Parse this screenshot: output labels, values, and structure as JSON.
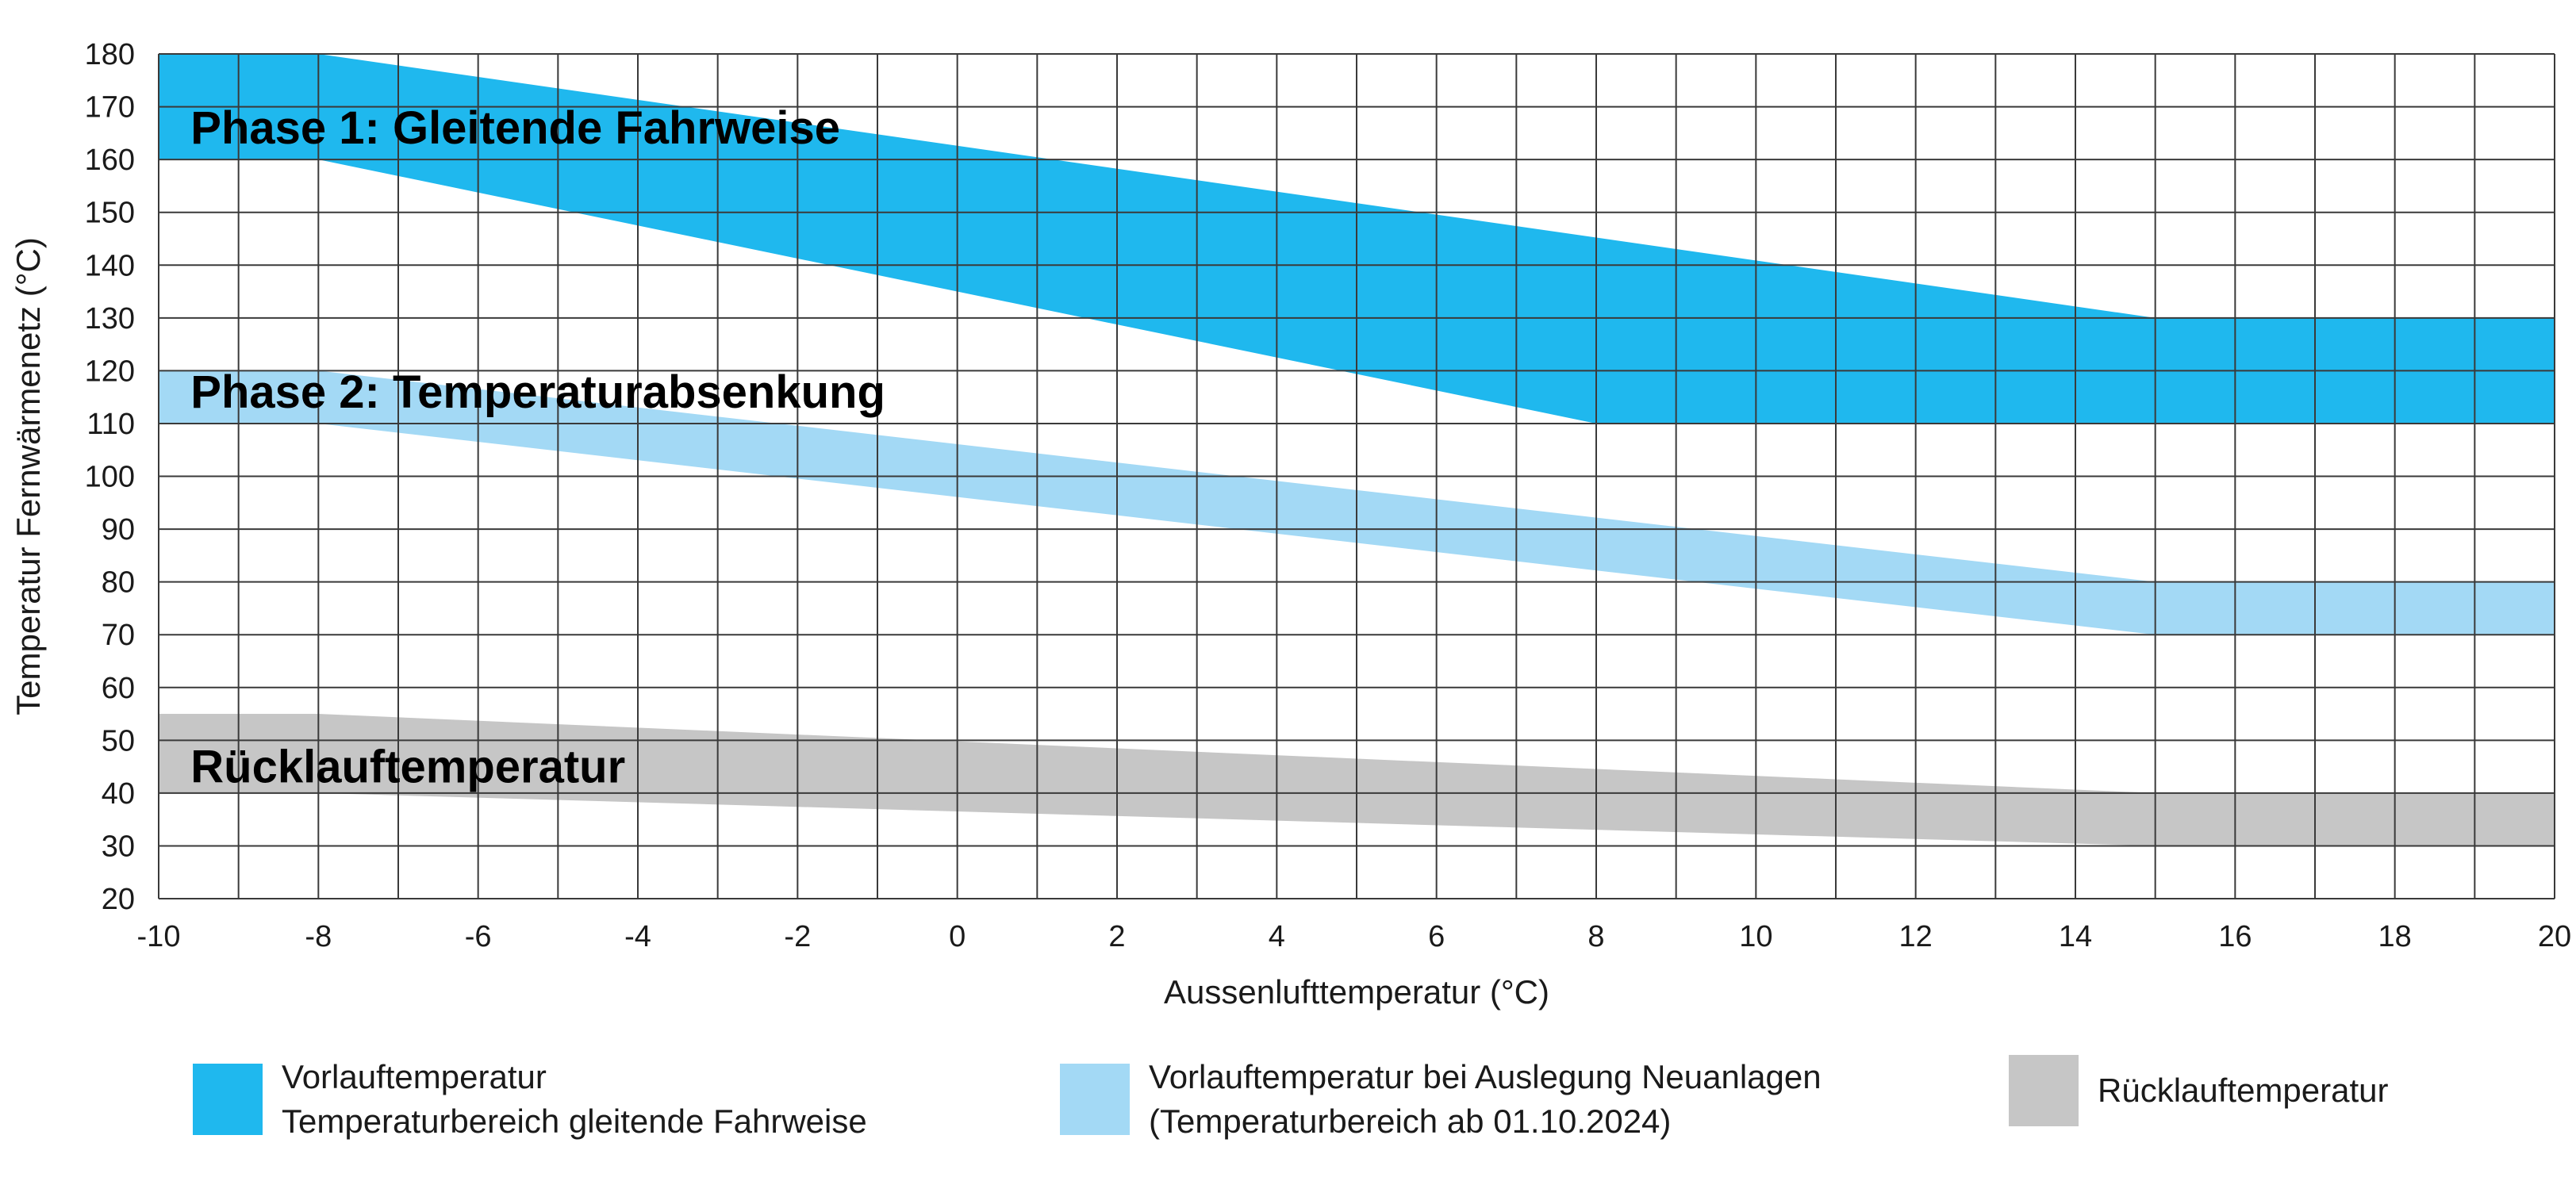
{
  "chart_data": {
    "type": "area",
    "xlabel": "Aussenlufttemperatur (°C)",
    "ylabel": "Temperatur Fernwärmenetz (°C)",
    "xlim": [
      -10,
      20
    ],
    "ylim": [
      20,
      180
    ],
    "x_ticks": [
      -10,
      -8,
      -6,
      -4,
      -2,
      0,
      2,
      4,
      6,
      8,
      10,
      12,
      14,
      16,
      18,
      20
    ],
    "y_ticks": [
      20,
      30,
      40,
      50,
      60,
      70,
      80,
      90,
      100,
      110,
      120,
      130,
      140,
      150,
      160,
      170,
      180
    ],
    "x_minor_step": 1,
    "grid": true,
    "series": [
      {
        "key": "phase1",
        "color": "#1fb8ee",
        "upper": [
          [
            -10,
            180
          ],
          [
            -8,
            180
          ],
          [
            15,
            130
          ],
          [
            20,
            130
          ]
        ],
        "lower": [
          [
            -10,
            160
          ],
          [
            -8,
            160
          ],
          [
            8,
            110
          ],
          [
            20,
            110
          ]
        ]
      },
      {
        "key": "phase2",
        "color": "#a3d9f5",
        "upper": [
          [
            -10,
            120
          ],
          [
            -8,
            120
          ],
          [
            15,
            80
          ],
          [
            20,
            80
          ]
        ],
        "lower": [
          [
            -10,
            110
          ],
          [
            -8,
            110
          ],
          [
            15,
            70
          ],
          [
            20,
            70
          ]
        ]
      },
      {
        "key": "ruecklauf",
        "color": "#c6c6c6",
        "upper": [
          [
            -10,
            55
          ],
          [
            -8,
            55
          ],
          [
            15,
            40
          ],
          [
            20,
            40
          ]
        ],
        "lower": [
          [
            -10,
            40
          ],
          [
            -8,
            40
          ],
          [
            15,
            30
          ],
          [
            20,
            30
          ]
        ]
      }
    ],
    "annotations": [
      {
        "text": "Phase 1: Gleitende Fahrweise",
        "x": -9.6,
        "y": 166
      },
      {
        "text": "Phase 2: Temperaturabsenkung",
        "x": -9.6,
        "y": 116
      },
      {
        "text": "Rücklauftemperatur",
        "x": -9.6,
        "y": 45
      }
    ]
  },
  "legend": [
    {
      "color": "#1fb8ee",
      "line1": "Vorlauftemperatur",
      "line2": "Temperaturbereich gleitende Fahrweise"
    },
    {
      "color": "#a3d9f5",
      "line1": "Vorlauftemperatur bei Auslegung Neuanlagen",
      "line2": "(Temperaturbereich ab 01.10.2024)"
    },
    {
      "color": "#c6c6c6",
      "line1": "Rücklauftemperatur",
      "line2": ""
    }
  ]
}
